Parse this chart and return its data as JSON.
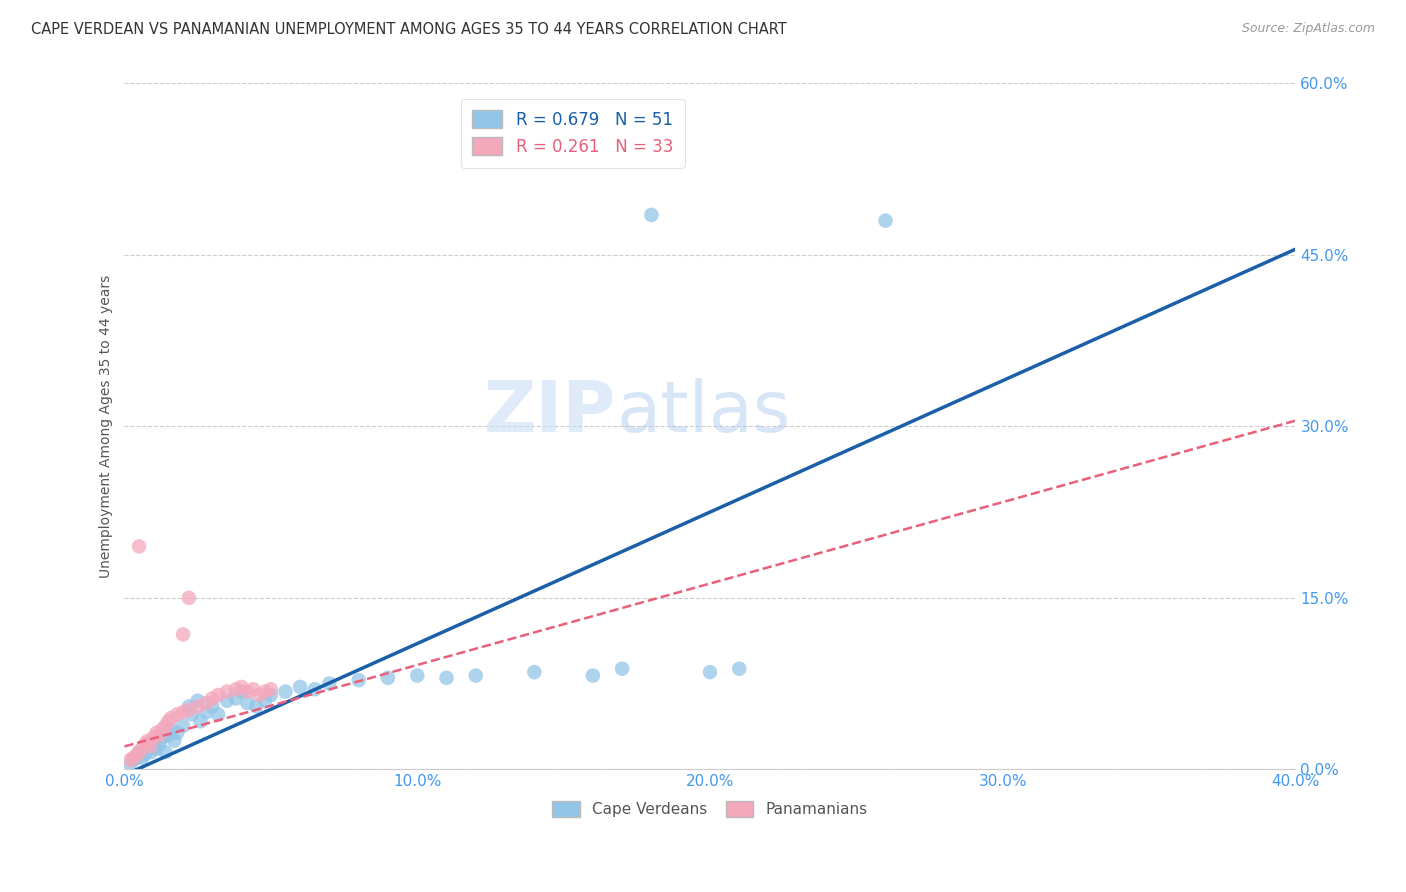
{
  "title": "CAPE VERDEAN VS PANAMANIAN UNEMPLOYMENT AMONG AGES 35 TO 44 YEARS CORRELATION CHART",
  "source": "Source: ZipAtlas.com",
  "xlabel_tick_vals": [
    0.0,
    0.1,
    0.2,
    0.3,
    0.4
  ],
  "ylabel_tick_vals": [
    0.0,
    0.15,
    0.3,
    0.45,
    0.6
  ],
  "ylabel": "Unemployment Among Ages 35 to 44 years",
  "xlim": [
    0.0,
    0.4
  ],
  "ylim": [
    0.0,
    0.6
  ],
  "watermark_zip": "ZIP",
  "watermark_atlas": "atlas",
  "legend_blue_label_r": "R = 0.679",
  "legend_blue_label_n": "N = 51",
  "legend_pink_label_r": "R = 0.261",
  "legend_pink_label_n": "N = 33",
  "legend_bottom_blue": "Cape Verdeans",
  "legend_bottom_pink": "Panamanians",
  "blue_color": "#92C5E8",
  "pink_color": "#F4A8BC",
  "blue_line_color": "#1a5fa8",
  "pink_line_color": "#E8607A",
  "blue_scatter": [
    [
      0.002,
      0.005
    ],
    [
      0.003,
      0.008
    ],
    [
      0.004,
      0.01
    ],
    [
      0.005,
      0.012
    ],
    [
      0.005,
      0.015
    ],
    [
      0.006,
      0.01
    ],
    [
      0.007,
      0.013
    ],
    [
      0.008,
      0.018
    ],
    [
      0.008,
      0.022
    ],
    [
      0.009,
      0.015
    ],
    [
      0.01,
      0.02
    ],
    [
      0.01,
      0.025
    ],
    [
      0.011,
      0.018
    ],
    [
      0.012,
      0.022
    ],
    [
      0.013,
      0.028
    ],
    [
      0.014,
      0.015
    ],
    [
      0.015,
      0.03
    ],
    [
      0.016,
      0.035
    ],
    [
      0.017,
      0.025
    ],
    [
      0.018,
      0.032
    ],
    [
      0.02,
      0.038
    ],
    [
      0.022,
      0.055
    ],
    [
      0.023,
      0.048
    ],
    [
      0.025,
      0.06
    ],
    [
      0.026,
      0.042
    ],
    [
      0.028,
      0.05
    ],
    [
      0.03,
      0.055
    ],
    [
      0.032,
      0.048
    ],
    [
      0.035,
      0.06
    ],
    [
      0.038,
      0.062
    ],
    [
      0.04,
      0.068
    ],
    [
      0.042,
      0.058
    ],
    [
      0.045,
      0.055
    ],
    [
      0.048,
      0.06
    ],
    [
      0.05,
      0.065
    ],
    [
      0.055,
      0.068
    ],
    [
      0.06,
      0.072
    ],
    [
      0.065,
      0.07
    ],
    [
      0.07,
      0.075
    ],
    [
      0.08,
      0.078
    ],
    [
      0.09,
      0.08
    ],
    [
      0.1,
      0.082
    ],
    [
      0.11,
      0.08
    ],
    [
      0.12,
      0.082
    ],
    [
      0.14,
      0.085
    ],
    [
      0.16,
      0.082
    ],
    [
      0.17,
      0.088
    ],
    [
      0.2,
      0.085
    ],
    [
      0.21,
      0.088
    ],
    [
      0.18,
      0.485
    ],
    [
      0.26,
      0.48
    ]
  ],
  "pink_scatter": [
    [
      0.002,
      0.008
    ],
    [
      0.003,
      0.01
    ],
    [
      0.004,
      0.012
    ],
    [
      0.005,
      0.015
    ],
    [
      0.006,
      0.018
    ],
    [
      0.007,
      0.022
    ],
    [
      0.008,
      0.025
    ],
    [
      0.009,
      0.02
    ],
    [
      0.01,
      0.028
    ],
    [
      0.011,
      0.032
    ],
    [
      0.012,
      0.03
    ],
    [
      0.013,
      0.035
    ],
    [
      0.014,
      0.038
    ],
    [
      0.015,
      0.042
    ],
    [
      0.016,
      0.045
    ],
    [
      0.018,
      0.048
    ],
    [
      0.02,
      0.05
    ],
    [
      0.022,
      0.052
    ],
    [
      0.022,
      0.15
    ],
    [
      0.025,
      0.055
    ],
    [
      0.028,
      0.058
    ],
    [
      0.03,
      0.062
    ],
    [
      0.032,
      0.065
    ],
    [
      0.035,
      0.068
    ],
    [
      0.038,
      0.07
    ],
    [
      0.04,
      0.072
    ],
    [
      0.042,
      0.068
    ],
    [
      0.044,
      0.07
    ],
    [
      0.046,
      0.065
    ],
    [
      0.048,
      0.068
    ],
    [
      0.05,
      0.07
    ],
    [
      0.005,
      0.195
    ],
    [
      0.02,
      0.118
    ]
  ],
  "blue_trendline_x": [
    0.0,
    0.4
  ],
  "blue_trendline_y": [
    -0.005,
    0.455
  ],
  "pink_trendline_x": [
    0.0,
    0.4
  ],
  "pink_trendline_y": [
    0.02,
    0.305
  ]
}
